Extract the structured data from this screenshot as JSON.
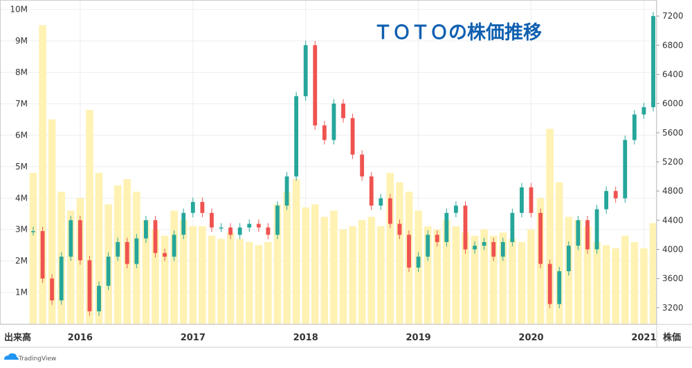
{
  "chart_data": {
    "type": "candlestick+bar",
    "title": "ＴＯＴＯの株価推移",
    "x_axis": {
      "label": "出来高",
      "ticks": [
        "2016",
        "2017",
        "2018",
        "2019",
        "2020",
        "2021"
      ],
      "range": [
        "2015-08",
        "2021-02"
      ]
    },
    "left_axis": {
      "label": "",
      "ticks": [
        "1M",
        "2M",
        "3M",
        "4M",
        "5M",
        "6M",
        "7M",
        "8M",
        "9M",
        "10M"
      ],
      "range": [
        0,
        10300000
      ]
    },
    "right_axis": {
      "label": "株価",
      "ticks": [
        "3200",
        "3600",
        "4000",
        "4400",
        "4800",
        "5200",
        "5600",
        "6000",
        "6400",
        "6800",
        "7200"
      ],
      "range": [
        2980,
        7420
      ]
    },
    "price_series": {
      "name": "株価",
      "up_color": "#26a69a",
      "down_color": "#ef5350",
      "points": [
        {
          "t": "2015-08",
          "c": 4250
        },
        {
          "t": "2015-09",
          "c": 3600
        },
        {
          "t": "2015-10",
          "c": 3300
        },
        {
          "t": "2015-11",
          "c": 3900
        },
        {
          "t": "2015-12",
          "c": 4400
        },
        {
          "t": "2016-01",
          "c": 3850
        },
        {
          "t": "2016-02",
          "c": 3150
        },
        {
          "t": "2016-03",
          "c": 3500
        },
        {
          "t": "2016-04",
          "c": 3900
        },
        {
          "t": "2016-05",
          "c": 4100
        },
        {
          "t": "2016-06",
          "c": 3800
        },
        {
          "t": "2016-07",
          "c": 4150
        },
        {
          "t": "2016-08",
          "c": 4400
        },
        {
          "t": "2016-09",
          "c": 3950
        },
        {
          "t": "2016-10",
          "c": 3900
        },
        {
          "t": "2016-11",
          "c": 4200
        },
        {
          "t": "2016-12",
          "c": 4500
        },
        {
          "t": "2017-01",
          "c": 4650
        },
        {
          "t": "2017-02",
          "c": 4500
        },
        {
          "t": "2017-03",
          "c": 4300
        },
        {
          "t": "2017-04",
          "c": 4300
        },
        {
          "t": "2017-05",
          "c": 4200
        },
        {
          "t": "2017-06",
          "c": 4300
        },
        {
          "t": "2017-07",
          "c": 4350
        },
        {
          "t": "2017-08",
          "c": 4300
        },
        {
          "t": "2017-09",
          "c": 4200
        },
        {
          "t": "2017-10",
          "c": 4600
        },
        {
          "t": "2017-11",
          "c": 5000
        },
        {
          "t": "2017-12",
          "c": 6100
        },
        {
          "t": "2018-01",
          "c": 6800
        },
        {
          "t": "2018-02",
          "c": 5700
        },
        {
          "t": "2018-03",
          "c": 5500
        },
        {
          "t": "2018-04",
          "c": 6000
        },
        {
          "t": "2018-05",
          "c": 5800
        },
        {
          "t": "2018-06",
          "c": 5300
        },
        {
          "t": "2018-07",
          "c": 5000
        },
        {
          "t": "2018-08",
          "c": 4600
        },
        {
          "t": "2018-09",
          "c": 4700
        },
        {
          "t": "2018-10",
          "c": 4350
        },
        {
          "t": "2018-11",
          "c": 4200
        },
        {
          "t": "2018-12",
          "c": 3750
        },
        {
          "t": "2019-01",
          "c": 3900
        },
        {
          "t": "2019-02",
          "c": 4200
        },
        {
          "t": "2019-03",
          "c": 4100
        },
        {
          "t": "2019-04",
          "c": 4500
        },
        {
          "t": "2019-05",
          "c": 4600
        },
        {
          "t": "2019-06",
          "c": 4000
        },
        {
          "t": "2019-07",
          "c": 4050
        },
        {
          "t": "2019-08",
          "c": 4100
        },
        {
          "t": "2019-09",
          "c": 3900
        },
        {
          "t": "2019-10",
          "c": 4100
        },
        {
          "t": "2019-11",
          "c": 4500
        },
        {
          "t": "2019-12",
          "c": 4850
        },
        {
          "t": "2020-01",
          "c": 4500
        },
        {
          "t": "2020-02",
          "c": 3800
        },
        {
          "t": "2020-03",
          "c": 3250
        },
        {
          "t": "2020-04",
          "c": 3700
        },
        {
          "t": "2020-05",
          "c": 4050
        },
        {
          "t": "2020-06",
          "c": 4400
        },
        {
          "t": "2020-07",
          "c": 4000
        },
        {
          "t": "2020-08",
          "c": 4550
        },
        {
          "t": "2020-09",
          "c": 4800
        },
        {
          "t": "2020-10",
          "c": 4700
        },
        {
          "t": "2020-11",
          "c": 5500
        },
        {
          "t": "2020-12",
          "c": 5850
        },
        {
          "t": "2021-01",
          "c": 5950
        },
        {
          "t": "2021-02",
          "c": 7200
        }
      ]
    },
    "volume_series": {
      "name": "出来高",
      "color": "#fff2b3",
      "points": [
        {
          "t": "2015-08",
          "v": 4800000
        },
        {
          "t": "2015-09",
          "v": 9500000
        },
        {
          "t": "2015-10",
          "v": 6500000
        },
        {
          "t": "2015-11",
          "v": 4200000
        },
        {
          "t": "2015-12",
          "v": 3600000
        },
        {
          "t": "2016-01",
          "v": 4000000
        },
        {
          "t": "2016-02",
          "v": 6800000
        },
        {
          "t": "2016-03",
          "v": 4800000
        },
        {
          "t": "2016-04",
          "v": 3800000
        },
        {
          "t": "2016-05",
          "v": 4400000
        },
        {
          "t": "2016-06",
          "v": 4600000
        },
        {
          "t": "2016-07",
          "v": 4200000
        },
        {
          "t": "2016-08",
          "v": 3300000
        },
        {
          "t": "2016-09",
          "v": 3000000
        },
        {
          "t": "2016-10",
          "v": 2800000
        },
        {
          "t": "2016-11",
          "v": 3600000
        },
        {
          "t": "2016-12",
          "v": 3300000
        },
        {
          "t": "2017-01",
          "v": 3100000
        },
        {
          "t": "2017-02",
          "v": 3100000
        },
        {
          "t": "2017-03",
          "v": 2800000
        },
        {
          "t": "2017-04",
          "v": 2700000
        },
        {
          "t": "2017-05",
          "v": 2900000
        },
        {
          "t": "2017-06",
          "v": 2700000
        },
        {
          "t": "2017-07",
          "v": 2600000
        },
        {
          "t": "2017-08",
          "v": 2500000
        },
        {
          "t": "2017-09",
          "v": 2600000
        },
        {
          "t": "2017-10",
          "v": 3800000
        },
        {
          "t": "2017-11",
          "v": 4200000
        },
        {
          "t": "2017-12",
          "v": 4600000
        },
        {
          "t": "2018-01",
          "v": 3700000
        },
        {
          "t": "2018-02",
          "v": 3800000
        },
        {
          "t": "2018-03",
          "v": 3400000
        },
        {
          "t": "2018-04",
          "v": 3600000
        },
        {
          "t": "2018-05",
          "v": 3000000
        },
        {
          "t": "2018-06",
          "v": 3100000
        },
        {
          "t": "2018-07",
          "v": 3300000
        },
        {
          "t": "2018-08",
          "v": 3400000
        },
        {
          "t": "2018-09",
          "v": 3100000
        },
        {
          "t": "2018-10",
          "v": 4800000
        },
        {
          "t": "2018-11",
          "v": 4500000
        },
        {
          "t": "2018-12",
          "v": 4200000
        },
        {
          "t": "2019-01",
          "v": 3600000
        },
        {
          "t": "2019-02",
          "v": 3100000
        },
        {
          "t": "2019-03",
          "v": 3000000
        },
        {
          "t": "2019-04",
          "v": 3300000
        },
        {
          "t": "2019-05",
          "v": 3100000
        },
        {
          "t": "2019-06",
          "v": 2900000
        },
        {
          "t": "2019-07",
          "v": 2800000
        },
        {
          "t": "2019-08",
          "v": 3000000
        },
        {
          "t": "2019-09",
          "v": 2800000
        },
        {
          "t": "2019-10",
          "v": 2900000
        },
        {
          "t": "2019-11",
          "v": 2700000
        },
        {
          "t": "2019-12",
          "v": 2600000
        },
        {
          "t": "2020-01",
          "v": 3000000
        },
        {
          "t": "2020-02",
          "v": 4000000
        },
        {
          "t": "2020-03",
          "v": 6200000
        },
        {
          "t": "2020-04",
          "v": 4500000
        },
        {
          "t": "2020-05",
          "v": 3400000
        },
        {
          "t": "2020-06",
          "v": 3300000
        },
        {
          "t": "2020-07",
          "v": 3100000
        },
        {
          "t": "2020-08",
          "v": 2600000
        },
        {
          "t": "2020-09",
          "v": 2500000
        },
        {
          "t": "2020-10",
          "v": 2400000
        },
        {
          "t": "2020-11",
          "v": 2800000
        },
        {
          "t": "2020-12",
          "v": 2600000
        },
        {
          "t": "2021-01",
          "v": 2400000
        },
        {
          "t": "2021-02",
          "v": 3200000
        }
      ]
    }
  },
  "watermark": {
    "text": "TradingView",
    "icon": "tradingview-cloud-icon"
  },
  "colors": {
    "title": "#1060b0",
    "grid": "#eeeeee",
    "axis_text": "#333333",
    "border": "#cccccc"
  }
}
